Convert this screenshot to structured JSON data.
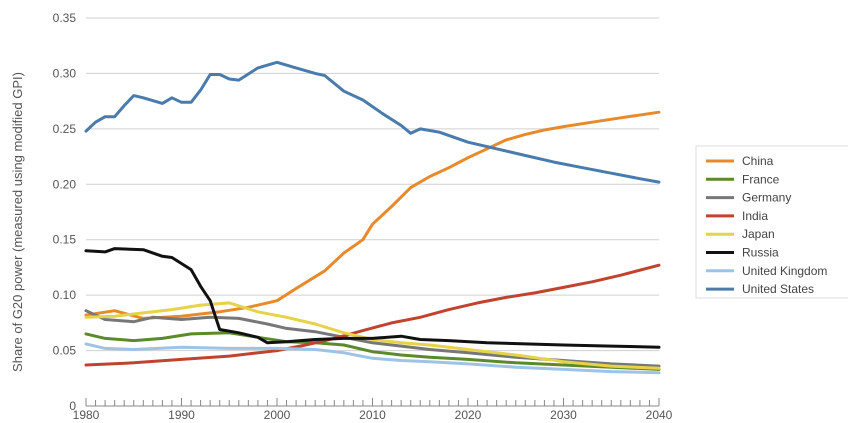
{
  "chart_data": {
    "type": "line",
    "title": "",
    "xlabel": "",
    "ylabel": "Share of G20 power (measured using modified GPI)",
    "xlim": [
      1980,
      2040
    ],
    "ylim": [
      0,
      0.35
    ],
    "x_ticks": [
      "1980",
      "1990",
      "2000",
      "2010",
      "2020",
      "2030",
      "2040"
    ],
    "y_ticks": [
      "0",
      "0.05",
      "0.10",
      "0.15",
      "0.20",
      "0.25",
      "0.30",
      "0.35"
    ],
    "grid": "horizontal",
    "legend_position": "right",
    "series": [
      {
        "name": "China",
        "color": "#e8892c",
        "points": [
          [
            1980,
            0.082
          ],
          [
            1983,
            0.086
          ],
          [
            1986,
            0.079
          ],
          [
            1990,
            0.081
          ],
          [
            1994,
            0.085
          ],
          [
            1997,
            0.089
          ],
          [
            2000,
            0.095
          ],
          [
            2002,
            0.106
          ],
          [
            2005,
            0.122
          ],
          [
            2007,
            0.138
          ],
          [
            2009,
            0.15
          ],
          [
            2010,
            0.164
          ],
          [
            2012,
            0.18
          ],
          [
            2014,
            0.197
          ],
          [
            2016,
            0.207
          ],
          [
            2018,
            0.215
          ],
          [
            2020,
            0.224
          ],
          [
            2022,
            0.232
          ],
          [
            2024,
            0.24
          ],
          [
            2026,
            0.245
          ],
          [
            2028,
            0.249
          ],
          [
            2030,
            0.252
          ],
          [
            2033,
            0.256
          ],
          [
            2036,
            0.26
          ],
          [
            2040,
            0.265
          ]
        ]
      },
      {
        "name": "France",
        "color": "#5a8a2a",
        "points": [
          [
            1980,
            0.065
          ],
          [
            1982,
            0.061
          ],
          [
            1985,
            0.059
          ],
          [
            1988,
            0.061
          ],
          [
            1991,
            0.065
          ],
          [
            1995,
            0.066
          ],
          [
            1998,
            0.062
          ],
          [
            2001,
            0.058
          ],
          [
            2004,
            0.057
          ],
          [
            2007,
            0.055
          ],
          [
            2010,
            0.049
          ],
          [
            2013,
            0.046
          ],
          [
            2016,
            0.044
          ],
          [
            2020,
            0.042
          ],
          [
            2025,
            0.039
          ],
          [
            2030,
            0.037
          ],
          [
            2035,
            0.035
          ],
          [
            2040,
            0.033
          ]
        ]
      },
      {
        "name": "Germany",
        "color": "#777777",
        "points": [
          [
            1980,
            0.086
          ],
          [
            1982,
            0.078
          ],
          [
            1985,
            0.076
          ],
          [
            1987,
            0.08
          ],
          [
            1990,
            0.078
          ],
          [
            1993,
            0.08
          ],
          [
            1996,
            0.079
          ],
          [
            1999,
            0.074
          ],
          [
            2001,
            0.07
          ],
          [
            2004,
            0.067
          ],
          [
            2007,
            0.062
          ],
          [
            2010,
            0.057
          ],
          [
            2013,
            0.054
          ],
          [
            2016,
            0.051
          ],
          [
            2020,
            0.048
          ],
          [
            2025,
            0.044
          ],
          [
            2030,
            0.041
          ],
          [
            2035,
            0.038
          ],
          [
            2040,
            0.036
          ]
        ]
      },
      {
        "name": "India",
        "color": "#c0432e",
        "points": [
          [
            1980,
            0.037
          ],
          [
            1985,
            0.039
          ],
          [
            1990,
            0.042
          ],
          [
            1995,
            0.045
          ],
          [
            2000,
            0.05
          ],
          [
            2003,
            0.055
          ],
          [
            2006,
            0.061
          ],
          [
            2009,
            0.068
          ],
          [
            2012,
            0.075
          ],
          [
            2015,
            0.08
          ],
          [
            2018,
            0.087
          ],
          [
            2021,
            0.093
          ],
          [
            2024,
            0.098
          ],
          [
            2027,
            0.102
          ],
          [
            2030,
            0.107
          ],
          [
            2033,
            0.112
          ],
          [
            2036,
            0.118
          ],
          [
            2040,
            0.127
          ]
        ]
      },
      {
        "name": "Japan",
        "color": "#e6d34a",
        "points": [
          [
            1980,
            0.08
          ],
          [
            1983,
            0.081
          ],
          [
            1986,
            0.084
          ],
          [
            1989,
            0.087
          ],
          [
            1992,
            0.091
          ],
          [
            1995,
            0.093
          ],
          [
            1998,
            0.085
          ],
          [
            2001,
            0.08
          ],
          [
            2004,
            0.074
          ],
          [
            2007,
            0.066
          ],
          [
            2010,
            0.06
          ],
          [
            2013,
            0.057
          ],
          [
            2016,
            0.055
          ],
          [
            2020,
            0.051
          ],
          [
            2025,
            0.046
          ],
          [
            2030,
            0.04
          ],
          [
            2035,
            0.036
          ],
          [
            2040,
            0.034
          ]
        ]
      },
      {
        "name": "Russia",
        "color": "#111111",
        "points": [
          [
            1980,
            0.14
          ],
          [
            1982,
            0.139
          ],
          [
            1983,
            0.142
          ],
          [
            1986,
            0.141
          ],
          [
            1988,
            0.135
          ],
          [
            1989,
            0.134
          ],
          [
            1991,
            0.123
          ],
          [
            1992,
            0.108
          ],
          [
            1993,
            0.095
          ],
          [
            1994,
            0.069
          ],
          [
            1996,
            0.066
          ],
          [
            1998,
            0.062
          ],
          [
            1999,
            0.057
          ],
          [
            2001,
            0.058
          ],
          [
            2004,
            0.06
          ],
          [
            2007,
            0.061
          ],
          [
            2010,
            0.061
          ],
          [
            2013,
            0.063
          ],
          [
            2015,
            0.06
          ],
          [
            2018,
            0.059
          ],
          [
            2022,
            0.057
          ],
          [
            2026,
            0.056
          ],
          [
            2030,
            0.055
          ],
          [
            2035,
            0.054
          ],
          [
            2040,
            0.053
          ]
        ]
      },
      {
        "name": "United Kingdom",
        "color": "#9ec3e6",
        "points": [
          [
            1980,
            0.056
          ],
          [
            1982,
            0.052
          ],
          [
            1985,
            0.051
          ],
          [
            1990,
            0.053
          ],
          [
            1995,
            0.052
          ],
          [
            2000,
            0.052
          ],
          [
            2004,
            0.051
          ],
          [
            2007,
            0.048
          ],
          [
            2010,
            0.043
          ],
          [
            2013,
            0.041
          ],
          [
            2016,
            0.04
          ],
          [
            2020,
            0.038
          ],
          [
            2025,
            0.035
          ],
          [
            2030,
            0.033
          ],
          [
            2035,
            0.031
          ],
          [
            2040,
            0.03
          ]
        ]
      },
      {
        "name": "United States",
        "color": "#4a7bad",
        "points": [
          [
            1980,
            0.248
          ],
          [
            1981,
            0.256
          ],
          [
            1982,
            0.261
          ],
          [
            1983,
            0.261
          ],
          [
            1984,
            0.271
          ],
          [
            1985,
            0.28
          ],
          [
            1986,
            0.278
          ],
          [
            1988,
            0.273
          ],
          [
            1989,
            0.278
          ],
          [
            1990,
            0.274
          ],
          [
            1991,
            0.274
          ],
          [
            1992,
            0.285
          ],
          [
            1993,
            0.299
          ],
          [
            1994,
            0.299
          ],
          [
            1995,
            0.295
          ],
          [
            1996,
            0.294
          ],
          [
            1998,
            0.305
          ],
          [
            2000,
            0.31
          ],
          [
            2002,
            0.305
          ],
          [
            2004,
            0.3
          ],
          [
            2005,
            0.298
          ],
          [
            2007,
            0.284
          ],
          [
            2009,
            0.276
          ],
          [
            2011,
            0.264
          ],
          [
            2013,
            0.253
          ],
          [
            2014,
            0.246
          ],
          [
            2015,
            0.25
          ],
          [
            2017,
            0.247
          ],
          [
            2020,
            0.238
          ],
          [
            2023,
            0.232
          ],
          [
            2026,
            0.226
          ],
          [
            2029,
            0.22
          ],
          [
            2032,
            0.215
          ],
          [
            2035,
            0.21
          ],
          [
            2038,
            0.205
          ],
          [
            2040,
            0.202
          ]
        ]
      }
    ]
  }
}
